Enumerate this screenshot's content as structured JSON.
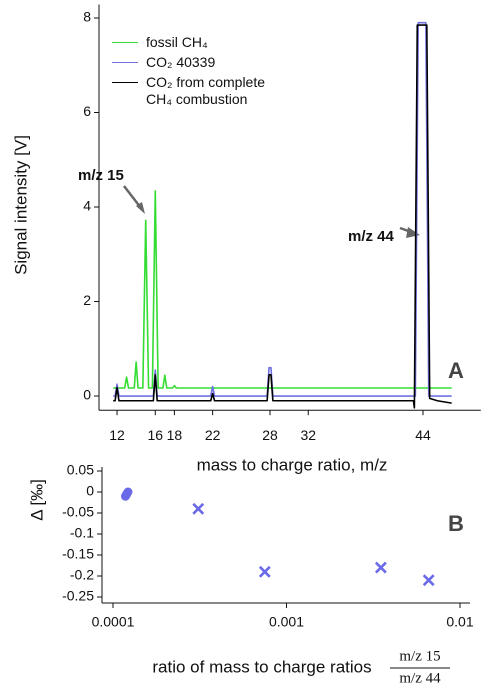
{
  "chart_data": [
    {
      "type": "line",
      "y_label": "Signal intensity [V]",
      "x_label": "mass to charge ratio, m/z",
      "annotations": [
        "m/z 15",
        "m/z 44"
      ],
      "panel_label": "A",
      "xlim": [
        10,
        49
      ],
      "xticks": [
        12,
        16,
        18,
        22,
        28,
        32,
        44
      ],
      "ylim": [
        -0.3,
        8.2
      ],
      "yticks": [
        0,
        2,
        4,
        6,
        8
      ],
      "grid": false,
      "series": [
        {
          "name": "fossil CH₄",
          "color": "#33dd33",
          "x": [
            11.6,
            12.8,
            13,
            13.2,
            13.8,
            14,
            14.2,
            14.7,
            15,
            15.3,
            15.7,
            16,
            16.3,
            16.8,
            17,
            17.2,
            17.8,
            18,
            18.2,
            47
          ],
          "values": [
            0.17,
            0.17,
            0.4,
            0.17,
            0.17,
            0.72,
            0.17,
            0.17,
            3.72,
            0.17,
            0.17,
            4.34,
            0.17,
            0.17,
            0.44,
            0.17,
            0.17,
            0.22,
            0.17,
            0.17
          ]
        },
        {
          "name": "CO₂ 40339",
          "color": "#7070e0",
          "x": [
            11.6,
            11.8,
            12,
            12.2,
            15.8,
            16,
            16.2,
            21.8,
            22,
            22.2,
            27.7,
            27.9,
            28.1,
            28.3,
            43.2,
            43.5,
            44.3,
            44.6,
            47
          ],
          "values": [
            0,
            0,
            0.25,
            0,
            0,
            0.55,
            0,
            0,
            0.2,
            0,
            0,
            0.6,
            0.6,
            0,
            0,
            7.9,
            7.9,
            0,
            0
          ]
        },
        {
          "name": "CO₂ from complete CH₄ combustion",
          "color": "#000000",
          "x": [
            11.6,
            11.8,
            12,
            12.2,
            15.8,
            16,
            16.2,
            21.8,
            22,
            22.2,
            27.7,
            27.9,
            28.1,
            28.3,
            43.0,
            43.1,
            43.4,
            44.4,
            44.7,
            45.5,
            47
          ],
          "values": [
            -0.1,
            -0.1,
            0.18,
            -0.1,
            -0.1,
            0.45,
            -0.1,
            -0.1,
            0.05,
            -0.1,
            -0.1,
            0.45,
            0.45,
            -0.1,
            -0.1,
            -0.25,
            7.85,
            7.85,
            -0.05,
            -0.1,
            -0.15
          ]
        }
      ]
    },
    {
      "type": "scatter",
      "y_label": "Δ [‰]",
      "x_label": "ratio of mass to charge ratios",
      "x_label_fraction": {
        "numerator": "m/z 15",
        "denominator": "m/z 44"
      },
      "panel_label": "B",
      "xlog": true,
      "xlim": [
        0.0001,
        0.01
      ],
      "xticks": [
        0.0001,
        0.001,
        0.01
      ],
      "ylim": [
        -0.25,
        0.05
      ],
      "yticks": [
        0.05,
        0,
        -0.05,
        -0.1,
        -0.15,
        -0.2,
        -0.25
      ],
      "grid": false,
      "series": [
        {
          "marker": "circle",
          "color": "#6a6ae8",
          "x": [
            0.000118,
            0.00012,
            0.000122
          ],
          "values": [
            -0.01,
            -0.005,
            0
          ]
        },
        {
          "marker": "cross",
          "color": "#6a6ae8",
          "x": [
            0.00031,
            0.00075,
            0.0035,
            0.0066
          ],
          "values": [
            -0.04,
            -0.19,
            -0.18,
            -0.21
          ]
        }
      ]
    }
  ]
}
